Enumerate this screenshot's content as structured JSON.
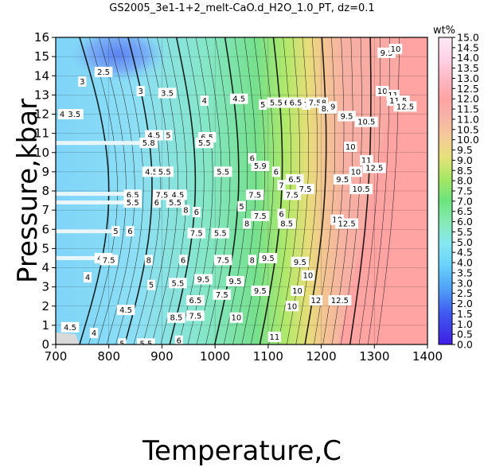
{
  "chart_data": {
    "type": "heatmap",
    "title": "GS2005_3e1-1+2_melt-CaO.d_H2O_1.0_PT, dz=0.1",
    "xlabel": "Temperature,C",
    "ylabel": "Pressure,kbar",
    "xlim": [
      700,
      1400
    ],
    "ylim": [
      0,
      16
    ],
    "x_ticks": [
      "700",
      "800",
      "900",
      "1000",
      "1100",
      "1200",
      "1300",
      "1400"
    ],
    "y_ticks": [
      "0",
      "1",
      "2",
      "3",
      "4",
      "5",
      "6",
      "7",
      "8",
      "9",
      "10",
      "11",
      "12",
      "13",
      "14",
      "15",
      "16"
    ],
    "grid": true,
    "colorbar": {
      "title": "wt%",
      "range": [
        0.0,
        15.0
      ],
      "ticks": [
        "0.0",
        "0.5",
        "1.0",
        "1.5",
        "2.0",
        "2.5",
        "3.0",
        "3.5",
        "4.0",
        "4.5",
        "5.0",
        "5.5",
        "6.0",
        "6.5",
        "7.0",
        "7.5",
        "8.0",
        "8.5",
        "9.0",
        "9.5",
        "10.0",
        "10.5",
        "11.0",
        "11.5",
        "12.0",
        "12.5",
        "13.0",
        "13.5",
        "14.0",
        "14.5",
        "15.0"
      ]
    },
    "contour_labels": [
      {
        "text": "2.5",
        "x": 790,
        "y": 14.2
      },
      {
        "text": "3",
        "x": 750,
        "y": 13.7
      },
      {
        "text": "3",
        "x": 860,
        "y": 13.2
      },
      {
        "text": "3.5",
        "x": 735,
        "y": 12.0
      },
      {
        "text": "3.5",
        "x": 910,
        "y": 13.1
      },
      {
        "text": "4",
        "x": 712,
        "y": 12.0
      },
      {
        "text": "4",
        "x": 980,
        "y": 12.7
      },
      {
        "text": "4.5",
        "x": 1045,
        "y": 12.8
      },
      {
        "text": "5",
        "x": 1090,
        "y": 12.5
      },
      {
        "text": "5.5",
        "x": 1115,
        "y": 12.6
      },
      {
        "text": "6",
        "x": 1135,
        "y": 12.6
      },
      {
        "text": "6.5",
        "x": 1152,
        "y": 12.6
      },
      {
        "text": "7",
        "x": 1172,
        "y": 12.5
      },
      {
        "text": "7.5",
        "x": 1188,
        "y": 12.6
      },
      {
        "text": "8",
        "x": 1205,
        "y": 12.6
      },
      {
        "text": "8.5",
        "x": 1212,
        "y": 12.3
      },
      {
        "text": "9",
        "x": 1222,
        "y": 12.4
      },
      {
        "text": "9.5",
        "x": 1248,
        "y": 11.9
      },
      {
        "text": "10.5",
        "x": 1285,
        "y": 11.6
      },
      {
        "text": "9.5",
        "x": 1323,
        "y": 15.2
      },
      {
        "text": "10",
        "x": 1340,
        "y": 15.4
      },
      {
        "text": "10",
        "x": 1315,
        "y": 13.2
      },
      {
        "text": "11",
        "x": 1335,
        "y": 13.0
      },
      {
        "text": "11.5",
        "x": 1345,
        "y": 12.7
      },
      {
        "text": "12.5",
        "x": 1358,
        "y": 12.4
      },
      {
        "text": "10",
        "x": 1255,
        "y": 10.3
      },
      {
        "text": "11",
        "x": 1285,
        "y": 9.6
      },
      {
        "text": "12.5",
        "x": 1300,
        "y": 9.2
      },
      {
        "text": "4.5",
        "x": 885,
        "y": 10.9
      },
      {
        "text": "5",
        "x": 912,
        "y": 10.9
      },
      {
        "text": "6.5",
        "x": 985,
        "y": 10.8
      },
      {
        "text": "5.5",
        "x": 980,
        "y": 10.5
      },
      {
        "text": "5.8",
        "x": 875,
        "y": 10.5
      },
      {
        "text": "6",
        "x": 1070,
        "y": 9.7
      },
      {
        "text": "5.9",
        "x": 1085,
        "y": 9.3
      },
      {
        "text": "4.5",
        "x": 880,
        "y": 9.0
      },
      {
        "text": "5.5",
        "x": 905,
        "y": 9.0
      },
      {
        "text": "5.5",
        "x": 1015,
        "y": 9.0
      },
      {
        "text": "6",
        "x": 1115,
        "y": 9.0
      },
      {
        "text": "6.5",
        "x": 1150,
        "y": 8.6
      },
      {
        "text": "7",
        "x": 1125,
        "y": 8.3
      },
      {
        "text": "7.5",
        "x": 1170,
        "y": 8.1
      },
      {
        "text": "9.5",
        "x": 1240,
        "y": 8.6
      },
      {
        "text": "10.5",
        "x": 1275,
        "y": 8.1
      },
      {
        "text": "10",
        "x": 1265,
        "y": 9.0
      },
      {
        "text": "6.5",
        "x": 845,
        "y": 7.8
      },
      {
        "text": "7.5",
        "x": 900,
        "y": 7.8
      },
      {
        "text": "4.5",
        "x": 930,
        "y": 7.8
      },
      {
        "text": "5.5",
        "x": 845,
        "y": 7.4
      },
      {
        "text": "6",
        "x": 890,
        "y": 7.4
      },
      {
        "text": "5.5",
        "x": 925,
        "y": 7.4
      },
      {
        "text": "7.5",
        "x": 1075,
        "y": 7.8
      },
      {
        "text": "7.5",
        "x": 1145,
        "y": 7.8
      },
      {
        "text": "5",
        "x": 1050,
        "y": 7.2
      },
      {
        "text": "8",
        "x": 945,
        "y": 7.0
      },
      {
        "text": "6",
        "x": 965,
        "y": 6.9
      },
      {
        "text": "7.5",
        "x": 1085,
        "y": 6.7
      },
      {
        "text": "6",
        "x": 1125,
        "y": 6.8
      },
      {
        "text": "8",
        "x": 1060,
        "y": 6.3
      },
      {
        "text": "8.5",
        "x": 1135,
        "y": 6.3
      },
      {
        "text": "5",
        "x": 813,
        "y": 5.9
      },
      {
        "text": "6",
        "x": 840,
        "y": 5.9
      },
      {
        "text": "7.5",
        "x": 965,
        "y": 5.8
      },
      {
        "text": "5.5",
        "x": 1010,
        "y": 5.8
      },
      {
        "text": "10",
        "x": 1230,
        "y": 6.5
      },
      {
        "text": "12.5",
        "x": 1248,
        "y": 6.3
      },
      {
        "text": "4.5",
        "x": 790,
        "y": 4.5
      },
      {
        "text": "7.5",
        "x": 800,
        "y": 4.4
      },
      {
        "text": "8",
        "x": 875,
        "y": 4.4
      },
      {
        "text": "6",
        "x": 940,
        "y": 4.4
      },
      {
        "text": "7.5",
        "x": 1015,
        "y": 4.4
      },
      {
        "text": "8",
        "x": 1070,
        "y": 4.4
      },
      {
        "text": "9.5",
        "x": 1100,
        "y": 4.5
      },
      {
        "text": "9.5",
        "x": 1160,
        "y": 4.3
      },
      {
        "text": "10",
        "x": 1175,
        "y": 3.6
      },
      {
        "text": "9.5",
        "x": 978,
        "y": 3.4
      },
      {
        "text": "9.5",
        "x": 1038,
        "y": 3.3
      },
      {
        "text": "9.5",
        "x": 1085,
        "y": 2.8
      },
      {
        "text": "10",
        "x": 1155,
        "y": 2.8
      },
      {
        "text": "12",
        "x": 1190,
        "y": 2.3
      },
      {
        "text": "12.5",
        "x": 1235,
        "y": 2.3
      },
      {
        "text": "4",
        "x": 760,
        "y": 3.5
      },
      {
        "text": "5",
        "x": 880,
        "y": 3.1
      },
      {
        "text": "5.5",
        "x": 930,
        "y": 3.2
      },
      {
        "text": "4.5",
        "x": 832,
        "y": 1.8
      },
      {
        "text": "6.5",
        "x": 963,
        "y": 2.3
      },
      {
        "text": "7.5",
        "x": 1013,
        "y": 2.6
      },
      {
        "text": "10",
        "x": 1145,
        "y": 2.0
      },
      {
        "text": "8.5",
        "x": 927,
        "y": 1.4
      },
      {
        "text": "7.5",
        "x": 963,
        "y": 1.5
      },
      {
        "text": "10",
        "x": 1040,
        "y": 1.4
      },
      {
        "text": "11",
        "x": 1112,
        "y": 0.4
      },
      {
        "text": "5",
        "x": 825,
        "y": 0.05
      },
      {
        "text": "5.5",
        "x": 870,
        "y": 0.05
      },
      {
        "text": "6",
        "x": 932,
        "y": 0.2
      },
      {
        "text": "4.5",
        "x": 727,
        "y": 0.9
      },
      {
        "text": "4",
        "x": 772,
        "y": 0.6
      }
    ]
  }
}
